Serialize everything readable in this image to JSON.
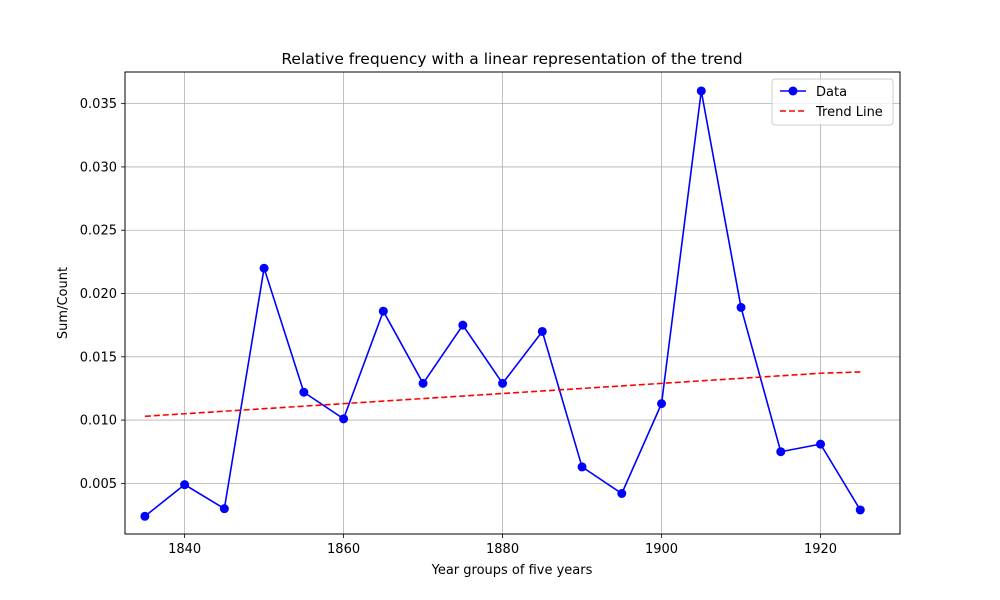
{
  "chart_data": {
    "type": "line",
    "title": "Relative frequency with a linear representation of the trend",
    "xlabel": "Year groups of five years",
    "ylabel": "Sum/Count",
    "xlim": [
      1832.5,
      1930
    ],
    "ylim": [
      0.001,
      0.0375
    ],
    "xticks": [
      1840,
      1860,
      1880,
      1900,
      1920
    ],
    "yticks": [
      0.005,
      0.01,
      0.015,
      0.02,
      0.025,
      0.03,
      0.035
    ],
    "ytick_labels": [
      "0.005",
      "0.010",
      "0.015",
      "0.020",
      "0.025",
      "0.030",
      "0.035"
    ],
    "grid": true,
    "legend_position": "top-right",
    "x": [
      1835,
      1840,
      1845,
      1850,
      1855,
      1860,
      1865,
      1870,
      1875,
      1880,
      1885,
      1890,
      1895,
      1900,
      1905,
      1910,
      1915,
      1920,
      1925
    ],
    "series": [
      {
        "name": "Data",
        "style": "solid-with-markers",
        "color": "#0000ff",
        "values": [
          0.0024,
          0.0049,
          0.003,
          0.022,
          0.0122,
          0.0101,
          0.0186,
          0.0129,
          0.0175,
          0.0129,
          0.017,
          0.0063,
          0.0042,
          0.0113,
          0.036,
          0.0189,
          0.0075,
          0.0081,
          0.0029
        ]
      },
      {
        "name": "Trend Line",
        "style": "dashed",
        "color": "#ff0000",
        "values": [
          0.0103,
          0.0105,
          0.0107,
          0.0109,
          0.0111,
          0.0113,
          0.0115,
          0.0117,
          0.0119,
          0.0121,
          0.0123,
          0.0125,
          0.0127,
          0.0129,
          0.0131,
          0.0133,
          0.0135,
          0.0137,
          0.0138
        ]
      }
    ]
  }
}
